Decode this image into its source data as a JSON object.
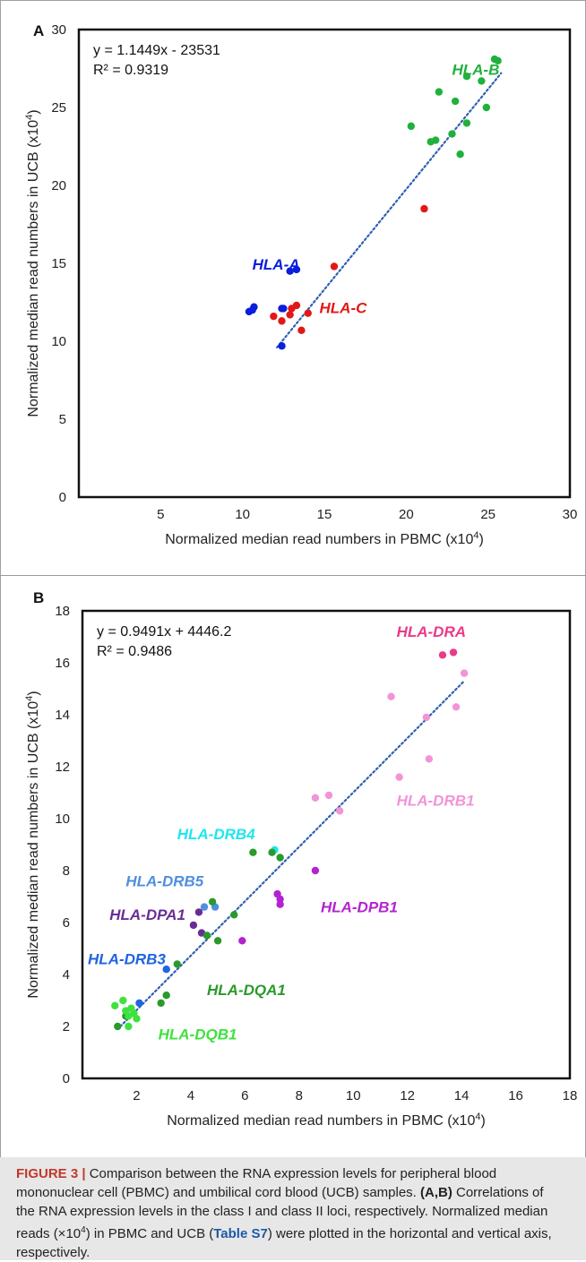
{
  "chart_data": [
    {
      "panel_label": "A",
      "type": "scatter",
      "equation": "y = 1.1449x - 23531",
      "r_squared": "R² = 0.9319",
      "xlabel": "Normalized median read numbers in PBMC (x10",
      "ylabel": "Normalized median read numbers in UCB (x10",
      "label_exponent": "4",
      "label_close": ")",
      "xlim": [
        0,
        30
      ],
      "ylim": [
        0,
        30
      ],
      "x_ticks": [
        5,
        10,
        15,
        20,
        25,
        30
      ],
      "y_ticks": [
        0,
        5,
        10,
        15,
        20,
        25,
        30
      ],
      "trendline": {
        "x": [
          12.1,
          25.8
        ],
        "y": [
          9.6,
          27.2
        ],
        "color": "#2f5fb4"
      },
      "series": [
        {
          "name": "HLA-A",
          "color": "#0a1edc",
          "label_at": [
            10.6,
            14.6
          ],
          "points": [
            [
              10.4,
              11.9
            ],
            [
              10.6,
              12.0
            ],
            [
              10.7,
              12.2
            ],
            [
              12.4,
              12.1
            ],
            [
              12.5,
              12.1
            ],
            [
              12.9,
              14.5
            ],
            [
              13.3,
              14.6
            ],
            [
              12.4,
              9.7
            ]
          ]
        },
        {
          "name": "HLA-B",
          "color": "#20b03c",
          "label_at": [
            22.8,
            27.1
          ],
          "points": [
            [
              20.3,
              23.8
            ],
            [
              21.5,
              22.8
            ],
            [
              21.8,
              22.9
            ],
            [
              22.0,
              26.0
            ],
            [
              22.8,
              23.3
            ],
            [
              23.0,
              25.4
            ],
            [
              23.3,
              22.0
            ],
            [
              23.7,
              27.0
            ],
            [
              23.7,
              24.0
            ],
            [
              24.6,
              26.7
            ],
            [
              24.9,
              25.0
            ],
            [
              25.4,
              28.1
            ],
            [
              25.6,
              28.0
            ]
          ]
        },
        {
          "name": "HLA-C",
          "color": "#e21818",
          "label_at": [
            14.7,
            11.8
          ],
          "points": [
            [
              11.9,
              11.6
            ],
            [
              12.4,
              11.3
            ],
            [
              12.9,
              11.7
            ],
            [
              13.0,
              12.1
            ],
            [
              13.3,
              12.3
            ],
            [
              13.6,
              10.7
            ],
            [
              14.0,
              11.8
            ],
            [
              15.6,
              14.8
            ],
            [
              21.1,
              18.5
            ]
          ]
        }
      ]
    },
    {
      "panel_label": "B",
      "type": "scatter",
      "equation": "y = 0.9491x + 4446.2",
      "r_squared": "R² = 0.9486",
      "xlabel": "Normalized median read numbers in PBMC (x10",
      "ylabel": "Normalized median read numbers in UCB (x10",
      "label_exponent": "4",
      "label_close": ")",
      "xlim": [
        0,
        18
      ],
      "ylim": [
        0,
        18
      ],
      "x_ticks": [
        2,
        4,
        6,
        8,
        10,
        12,
        14,
        16,
        18
      ],
      "y_ticks": [
        0,
        2,
        4,
        6,
        8,
        10,
        12,
        14,
        16,
        18
      ],
      "trendline": {
        "x": [
          1.4,
          14.1
        ],
        "y": [
          2.0,
          15.3
        ],
        "color": "#2f5fb4"
      },
      "series": [
        {
          "name": "HLA-DRA",
          "color": "#ea3a88",
          "label_at": [
            11.6,
            17.0
          ],
          "points": [
            [
              13.3,
              16.3
            ],
            [
              13.7,
              16.4
            ]
          ]
        },
        {
          "name": "HLA-DRB1",
          "color": "#f294d6",
          "label_at": [
            11.6,
            10.5
          ],
          "points": [
            [
              11.4,
              14.7
            ],
            [
              11.7,
              11.6
            ],
            [
              12.7,
              13.9
            ],
            [
              12.8,
              12.3
            ],
            [
              13.8,
              14.3
            ],
            [
              14.1,
              15.6
            ],
            [
              8.6,
              10.8
            ],
            [
              9.1,
              10.9
            ],
            [
              9.5,
              10.3
            ]
          ]
        },
        {
          "name": "HLA-DRB4",
          "color": "#1ee6f0",
          "label_at": [
            3.5,
            9.2
          ],
          "points": [
            [
              7.1,
              8.8
            ]
          ]
        },
        {
          "name": "HLA-DRB5",
          "color": "#4f8fe0",
          "label_at": [
            1.6,
            7.4
          ],
          "points": [
            [
              4.5,
              6.6
            ],
            [
              4.9,
              6.6
            ]
          ]
        },
        {
          "name": "HLA-DPA1",
          "color": "#6a2d96",
          "label_at": [
            1.0,
            6.1
          ],
          "points": [
            [
              4.1,
              5.9
            ],
            [
              4.3,
              6.4
            ],
            [
              4.4,
              5.6
            ]
          ]
        },
        {
          "name": "HLA-DPB1",
          "color": "#b323d0",
          "label_at": [
            8.8,
            6.4
          ],
          "points": [
            [
              8.6,
              8.0
            ],
            [
              7.2,
              7.1
            ],
            [
              7.3,
              6.9
            ],
            [
              7.3,
              6.7
            ],
            [
              5.9,
              5.3
            ]
          ]
        },
        {
          "name": "HLA-DRB3",
          "color": "#1f64e0",
          "label_at": [
            0.2,
            4.4
          ],
          "points": [
            [
              3.1,
              4.2
            ],
            [
              2.1,
              2.9
            ]
          ]
        },
        {
          "name": "HLA-DQA1",
          "color": "#2a9a2a",
          "label_at": [
            4.6,
            3.2
          ],
          "points": [
            [
              6.3,
              8.7
            ],
            [
              7.0,
              8.7
            ],
            [
              7.3,
              8.5
            ],
            [
              4.8,
              6.8
            ],
            [
              5.6,
              6.3
            ],
            [
              4.6,
              5.5
            ],
            [
              5.0,
              5.3
            ],
            [
              3.5,
              4.4
            ],
            [
              3.1,
              3.2
            ],
            [
              2.9,
              2.9
            ],
            [
              1.6,
              2.4
            ],
            [
              1.3,
              2.0
            ]
          ]
        },
        {
          "name": "HLA-DQB1",
          "color": "#3ee23e",
          "label_at": [
            2.8,
            1.5
          ],
          "points": [
            [
              1.2,
              2.8
            ],
            [
              1.5,
              3.0
            ],
            [
              1.6,
              2.6
            ],
            [
              1.7,
              2.4
            ],
            [
              1.8,
              2.7
            ],
            [
              1.9,
              2.5
            ],
            [
              2.0,
              2.3
            ],
            [
              1.7,
              2.0
            ]
          ]
        }
      ]
    }
  ],
  "caption": {
    "figure_label": "FIGURE 3 |",
    "title": " Comparison between the RNA expression levels for peripheral blood mononuclear cell (PBMC) and umbilical cord blood (UCB) samples. ",
    "panels_ref": "(A,B)",
    "text_1": " Correlations of the RNA expression levels in the class I and class II loci, respectively. Normalized median reads (×10",
    "text_exponent": "4",
    "text_2": ") in PBMC and UCB (",
    "table_ref": "Table S7",
    "text_3": ") were plotted in the horizontal and vertical axis, respectively."
  }
}
